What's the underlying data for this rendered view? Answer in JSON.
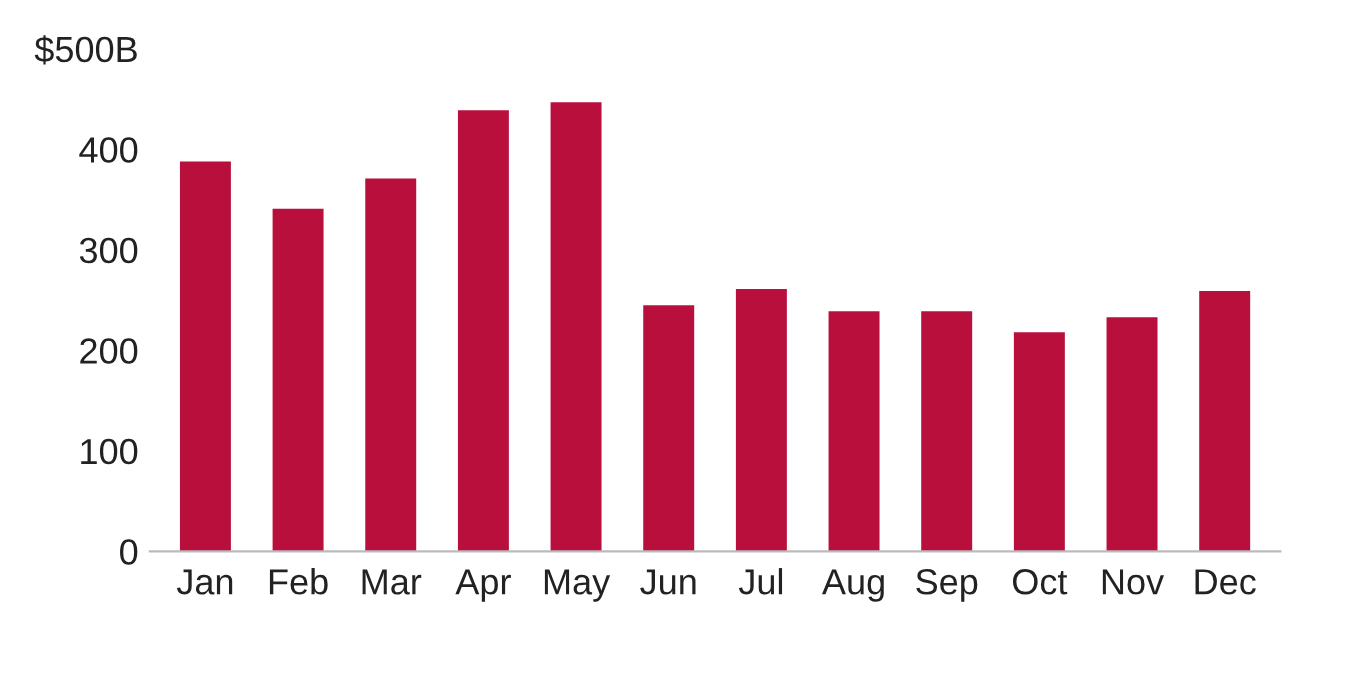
{
  "chart_data": {
    "type": "bar",
    "categories": [
      "Jan",
      "Feb",
      "Mar",
      "Apr",
      "May",
      "Jun",
      "Jul",
      "Aug",
      "Sep",
      "Oct",
      "Nov",
      "Dec"
    ],
    "values": [
      388,
      341,
      371,
      439,
      447,
      245,
      261,
      239,
      239,
      218,
      233,
      259
    ],
    "color": "#b80f3c",
    "ylim": [
      0,
      500
    ],
    "yticks": [
      0,
      100,
      200,
      300,
      400,
      {
        "value": 500,
        "label": "$500B"
      }
    ],
    "grid": false
  }
}
